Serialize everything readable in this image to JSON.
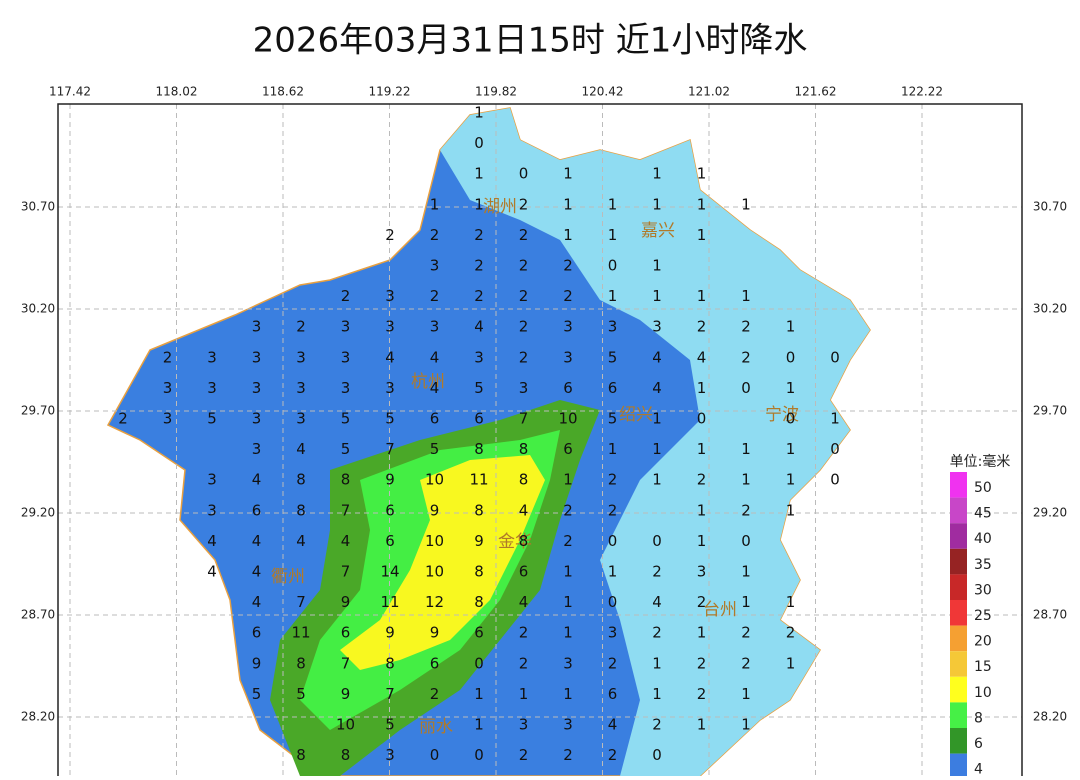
{
  "title": "2026年03月31日15时  近1小时降水",
  "longitude_labels": [
    "117.42",
    "118.02",
    "118.62",
    "119.22",
    "119.82",
    "120.42",
    "121.02",
    "121.62",
    "122.22"
  ],
  "latitude_labels": [
    "30.70",
    "30.20",
    "29.70",
    "29.20",
    "28.70",
    "28.20"
  ],
  "cities": [
    "湖州",
    "嘉兴",
    "杭州",
    "绍兴",
    "宁波",
    "金华",
    "衢州",
    "台州",
    "丽水"
  ],
  "legend": {
    "unit": "单位:毫米",
    "levels": [
      {
        "label": "50",
        "color": "#f032f0"
      },
      {
        "label": "45",
        "color": "#c846c8"
      },
      {
        "label": "40",
        "color": "#a02ca0"
      },
      {
        "label": "35",
        "color": "#962323"
      },
      {
        "label": "30",
        "color": "#c82828"
      },
      {
        "label": "25",
        "color": "#f03737"
      },
      {
        "label": "20",
        "color": "#f5a032"
      },
      {
        "label": "15",
        "color": "#f5c837"
      },
      {
        "label": "10",
        "color": "#ffff1e"
      },
      {
        "label": "8",
        "color": "#46f046"
      },
      {
        "label": "6",
        "color": "#329628"
      },
      {
        "label": "4",
        "color": "#3c7de0"
      }
    ]
  },
  "stations": [
    [
      null,
      null,
      null,
      null,
      null,
      null,
      null,
      null,
      1,
      null,
      null,
      null,
      null,
      null,
      null,
      null,
      null
    ],
    [
      null,
      null,
      null,
      null,
      null,
      null,
      null,
      null,
      0,
      null,
      null,
      null,
      null,
      null,
      null,
      null,
      null
    ],
    [
      null,
      null,
      null,
      null,
      null,
      null,
      null,
      null,
      1,
      0,
      1,
      null,
      1,
      1,
      null,
      null,
      null
    ],
    [
      null,
      null,
      null,
      null,
      null,
      null,
      null,
      1,
      1,
      2,
      1,
      1,
      1,
      1,
      1,
      null,
      null
    ],
    [
      null,
      null,
      null,
      null,
      null,
      null,
      2,
      2,
      2,
      2,
      1,
      1,
      null,
      1,
      null,
      null,
      null
    ],
    [
      null,
      null,
      null,
      null,
      null,
      null,
      null,
      3,
      2,
      2,
      2,
      0,
      1,
      null,
      null,
      null,
      null
    ],
    [
      null,
      null,
      null,
      null,
      null,
      2,
      3,
      2,
      2,
      2,
      2,
      1,
      1,
      1,
      1,
      null,
      null
    ],
    [
      null,
      null,
      null,
      3,
      2,
      3,
      3,
      3,
      4,
      2,
      3,
      3,
      3,
      2,
      2,
      1,
      null
    ],
    [
      null,
      2,
      3,
      3,
      3,
      3,
      4,
      4,
      3,
      2,
      3,
      5,
      4,
      4,
      2,
      0,
      0
    ],
    [
      null,
      3,
      3,
      3,
      3,
      3,
      3,
      4,
      5,
      3,
      6,
      6,
      4,
      1,
      0,
      1,
      null
    ],
    [
      2,
      3,
      5,
      3,
      3,
      5,
      5,
      6,
      6,
      7,
      10,
      5,
      1,
      0,
      null,
      0,
      1
    ],
    [
      null,
      null,
      null,
      3,
      4,
      5,
      7,
      5,
      8,
      8,
      6,
      1,
      1,
      1,
      1,
      1,
      0
    ],
    [
      null,
      null,
      3,
      4,
      8,
      8,
      9,
      10,
      11,
      8,
      1,
      2,
      1,
      2,
      1,
      1,
      0
    ],
    [
      null,
      null,
      3,
      6,
      8,
      7,
      6,
      9,
      8,
      4,
      2,
      2,
      null,
      1,
      2,
      1,
      null
    ],
    [
      null,
      null,
      4,
      4,
      4,
      4,
      6,
      10,
      9,
      8,
      2,
      0,
      0,
      1,
      0,
      null,
      null
    ],
    [
      null,
      null,
      4,
      4,
      null,
      7,
      14,
      10,
      8,
      6,
      1,
      1,
      2,
      3,
      1,
      null,
      null
    ],
    [
      null,
      null,
      null,
      4,
      7,
      9,
      11,
      12,
      8,
      4,
      1,
      0,
      4,
      2,
      1,
      1,
      null
    ],
    [
      null,
      null,
      null,
      6,
      11,
      6,
      9,
      9,
      6,
      2,
      1,
      3,
      2,
      1,
      2,
      2,
      null
    ],
    [
      null,
      null,
      null,
      9,
      8,
      7,
      8,
      6,
      0,
      2,
      3,
      2,
      1,
      2,
      2,
      1,
      null
    ],
    [
      null,
      null,
      null,
      5,
      5,
      9,
      7,
      2,
      1,
      1,
      1,
      6,
      1,
      2,
      1,
      null,
      null
    ],
    [
      null,
      null,
      null,
      null,
      null,
      10,
      5,
      null,
      1,
      3,
      3,
      4,
      2,
      1,
      1,
      null,
      null
    ],
    [
      null,
      null,
      null,
      null,
      8,
      8,
      3,
      0,
      0,
      2,
      2,
      2,
      0,
      null,
      null,
      null,
      null
    ]
  ]
}
